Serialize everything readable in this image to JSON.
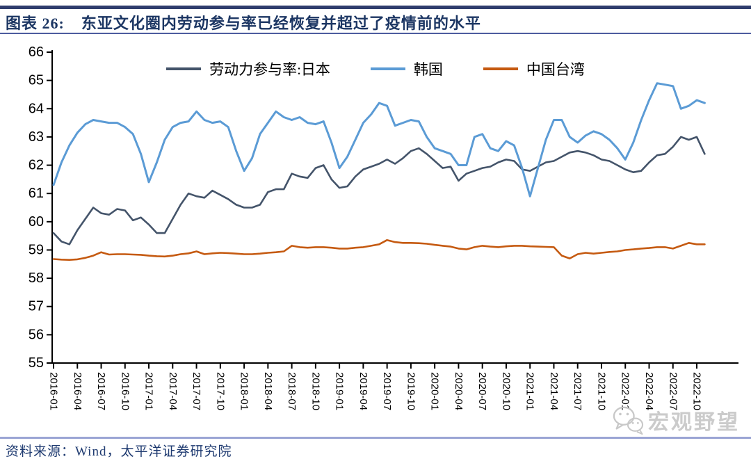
{
  "header": {
    "figure_label": "图表 26:",
    "title": "东亚文化圈内劳动参与率已经恢复并超过了疫情前的水平"
  },
  "footer": {
    "source": "资料来源：Wind，太平洋证券研究院"
  },
  "watermark": {
    "text": "宏观野望",
    "icon": "wechat-icon",
    "color": "#C9C9C9"
  },
  "chart_data": {
    "type": "line",
    "title": "东亚文化圈内劳动参与率已经恢复并超过了疫情前的水平",
    "xlabel": "",
    "ylabel": "",
    "ylim": [
      55,
      66
    ],
    "y_ticks": [
      55,
      56,
      57,
      58,
      59,
      60,
      61,
      62,
      63,
      64,
      65,
      66
    ],
    "x_tick_step": 3,
    "grid": false,
    "legend_position": "top",
    "categories": [
      "2016-01",
      "2016-02",
      "2016-03",
      "2016-04",
      "2016-05",
      "2016-06",
      "2016-07",
      "2016-08",
      "2016-09",
      "2016-10",
      "2016-11",
      "2016-12",
      "2017-01",
      "2017-02",
      "2017-03",
      "2017-04",
      "2017-05",
      "2017-06",
      "2017-07",
      "2017-08",
      "2017-09",
      "2017-10",
      "2017-11",
      "2017-12",
      "2018-01",
      "2018-02",
      "2018-03",
      "2018-04",
      "2018-05",
      "2018-06",
      "2018-07",
      "2018-08",
      "2018-09",
      "2018-10",
      "2018-11",
      "2018-12",
      "2019-01",
      "2019-02",
      "2019-03",
      "2019-04",
      "2019-05",
      "2019-06",
      "2019-07",
      "2019-08",
      "2019-09",
      "2019-10",
      "2019-11",
      "2019-12",
      "2020-01",
      "2020-02",
      "2020-03",
      "2020-04",
      "2020-05",
      "2020-06",
      "2020-07",
      "2020-08",
      "2020-09",
      "2020-10",
      "2020-11",
      "2020-12",
      "2021-01",
      "2021-02",
      "2021-03",
      "2021-04",
      "2021-05",
      "2021-06",
      "2021-07",
      "2021-08",
      "2021-09",
      "2021-10",
      "2021-11",
      "2021-12",
      "2022-01",
      "2022-02",
      "2022-03",
      "2022-04",
      "2022-05",
      "2022-06",
      "2022-07",
      "2022-08",
      "2022-09",
      "2022-10",
      "2022-11"
    ],
    "series": [
      {
        "name": "劳动力参与率:日本",
        "color": "#44546A",
        "values": [
          59.6,
          59.3,
          59.2,
          59.7,
          60.1,
          60.5,
          60.3,
          60.25,
          60.45,
          60.4,
          60.05,
          60.15,
          59.9,
          59.6,
          59.6,
          60.1,
          60.6,
          61.0,
          60.9,
          60.85,
          61.1,
          60.95,
          60.8,
          60.6,
          60.5,
          60.5,
          60.6,
          61.05,
          61.15,
          61.15,
          61.7,
          61.6,
          61.55,
          61.9,
          62.0,
          61.5,
          61.2,
          61.25,
          61.6,
          61.85,
          61.95,
          62.05,
          62.2,
          62.05,
          62.25,
          62.5,
          62.6,
          62.4,
          62.15,
          61.9,
          61.95,
          61.45,
          61.7,
          61.8,
          61.9,
          61.95,
          62.1,
          62.2,
          62.15,
          61.85,
          61.8,
          61.95,
          62.1,
          62.15,
          62.3,
          62.45,
          62.5,
          62.45,
          62.35,
          62.2,
          62.15,
          62.0,
          61.85,
          61.75,
          61.8,
          62.1,
          62.35,
          62.4,
          62.65,
          63.0,
          62.9,
          63.0,
          62.4
        ]
      },
      {
        "name": "韩国",
        "color": "#5B9BD5",
        "values": [
          61.3,
          62.1,
          62.7,
          63.15,
          63.45,
          63.6,
          63.55,
          63.5,
          63.5,
          63.35,
          63.1,
          62.4,
          61.4,
          62.1,
          62.9,
          63.35,
          63.5,
          63.55,
          63.9,
          63.6,
          63.5,
          63.55,
          63.35,
          62.5,
          61.8,
          62.25,
          63.1,
          63.5,
          63.9,
          63.7,
          63.6,
          63.7,
          63.5,
          63.45,
          63.55,
          62.8,
          61.9,
          62.3,
          62.9,
          63.5,
          63.8,
          64.2,
          64.1,
          63.4,
          63.5,
          63.6,
          63.55,
          63.0,
          62.6,
          62.5,
          62.4,
          62.0,
          62.0,
          63.0,
          63.1,
          62.6,
          62.5,
          62.85,
          62.7,
          61.9,
          60.9,
          61.9,
          62.9,
          63.6,
          63.6,
          63.0,
          62.8,
          63.05,
          63.2,
          63.1,
          62.9,
          62.6,
          62.2,
          62.8,
          63.6,
          64.3,
          64.9,
          64.85,
          64.8,
          64.0,
          64.1,
          64.3,
          64.2
        ]
      },
      {
        "name": "中国台湾",
        "color": "#C55A11",
        "values": [
          58.68,
          58.66,
          58.65,
          58.67,
          58.72,
          58.8,
          58.92,
          58.84,
          58.85,
          58.85,
          58.84,
          58.83,
          58.8,
          58.78,
          58.77,
          58.8,
          58.85,
          58.88,
          58.95,
          58.85,
          58.88,
          58.9,
          58.89,
          58.87,
          58.85,
          58.85,
          58.87,
          58.9,
          58.92,
          58.95,
          59.15,
          59.1,
          59.08,
          59.1,
          59.1,
          59.08,
          59.05,
          59.05,
          59.08,
          59.1,
          59.15,
          59.2,
          59.35,
          59.28,
          59.25,
          59.25,
          59.24,
          59.22,
          59.18,
          59.15,
          59.12,
          59.05,
          59.02,
          59.1,
          59.15,
          59.12,
          59.1,
          59.13,
          59.15,
          59.15,
          59.13,
          59.12,
          59.11,
          59.1,
          58.8,
          58.7,
          58.85,
          58.9,
          58.87,
          58.9,
          58.93,
          58.95,
          59.0,
          59.02,
          59.05,
          59.07,
          59.1,
          59.1,
          59.05,
          59.15,
          59.25,
          59.2,
          59.2
        ]
      }
    ]
  }
}
